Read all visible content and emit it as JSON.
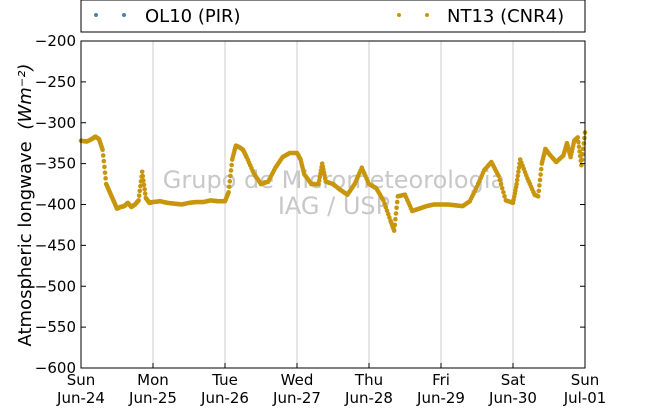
{
  "chart_data": {
    "type": "scatter",
    "ylabel": "Atmospheric longwave",
    "ylabel_units": "(Wm⁻²)",
    "ylim": [
      -600,
      -200
    ],
    "yticks": [
      -200,
      -250,
      -300,
      -350,
      -400,
      -450,
      -500,
      -550,
      -600
    ],
    "xlim": [
      0,
      7
    ],
    "x_unit": "days from Sun Jun-24 00:00",
    "xticks": [
      {
        "x": 0,
        "day": "Sun",
        "date": "Jun-24"
      },
      {
        "x": 1,
        "day": "Mon",
        "date": "Jun-25"
      },
      {
        "x": 2,
        "day": "Tue",
        "date": "Jun-26"
      },
      {
        "x": 3,
        "day": "Wed",
        "date": "Jun-27"
      },
      {
        "x": 4,
        "day": "Thu",
        "date": "Jun-28"
      },
      {
        "x": 5,
        "day": "Fri",
        "date": "Jun-29"
      },
      {
        "x": 6,
        "day": "Sat",
        "date": "Jun-30"
      },
      {
        "x": 7,
        "day": "Sun",
        "date": "Jul-01"
      }
    ],
    "grid": "vertical",
    "legend_position": "top",
    "watermark": [
      "Grupo de Micrometeorologia",
      "IAG / USP"
    ],
    "series": [
      {
        "name": "OL10 (PIR)",
        "color": "#4682b4",
        "points": []
      },
      {
        "name": "NT13 (CNR4)",
        "color": "#c8960c",
        "points": [
          [
            0.0,
            -322
          ],
          [
            0.08,
            -323
          ],
          [
            0.15,
            -320
          ],
          [
            0.2,
            -317
          ],
          [
            0.25,
            -320
          ],
          [
            0.3,
            -333
          ],
          [
            0.35,
            -375
          ],
          [
            0.4,
            -385
          ],
          [
            0.45,
            -395
          ],
          [
            0.5,
            -405
          ],
          [
            0.55,
            -403
          ],
          [
            0.6,
            -402
          ],
          [
            0.65,
            -398
          ],
          [
            0.7,
            -403
          ],
          [
            0.75,
            -400
          ],
          [
            0.8,
            -395
          ],
          [
            0.85,
            -360
          ],
          [
            0.9,
            -392
          ],
          [
            0.95,
            -398
          ],
          [
            1.0,
            -397
          ],
          [
            1.1,
            -396
          ],
          [
            1.2,
            -398
          ],
          [
            1.3,
            -399
          ],
          [
            1.4,
            -400
          ],
          [
            1.5,
            -398
          ],
          [
            1.6,
            -397
          ],
          [
            1.7,
            -397
          ],
          [
            1.8,
            -395
          ],
          [
            1.9,
            -396
          ],
          [
            2.0,
            -396
          ],
          [
            2.05,
            -385
          ],
          [
            2.1,
            -345
          ],
          [
            2.15,
            -328
          ],
          [
            2.2,
            -330
          ],
          [
            2.25,
            -333
          ],
          [
            2.3,
            -342
          ],
          [
            2.4,
            -362
          ],
          [
            2.5,
            -375
          ],
          [
            2.6,
            -372
          ],
          [
            2.7,
            -355
          ],
          [
            2.8,
            -342
          ],
          [
            2.9,
            -337
          ],
          [
            3.0,
            -337
          ],
          [
            3.05,
            -345
          ],
          [
            3.1,
            -363
          ],
          [
            3.2,
            -375
          ],
          [
            3.3,
            -375
          ],
          [
            3.35,
            -350
          ],
          [
            3.4,
            -372
          ],
          [
            3.5,
            -375
          ],
          [
            3.6,
            -382
          ],
          [
            3.7,
            -388
          ],
          [
            3.8,
            -375
          ],
          [
            3.9,
            -355
          ],
          [
            4.0,
            -375
          ],
          [
            4.1,
            -380
          ],
          [
            4.2,
            -395
          ],
          [
            4.3,
            -420
          ],
          [
            4.35,
            -432
          ],
          [
            4.4,
            -390
          ],
          [
            4.5,
            -388
          ],
          [
            4.6,
            -408
          ],
          [
            4.7,
            -405
          ],
          [
            4.8,
            -402
          ],
          [
            4.9,
            -400
          ],
          [
            5.0,
            -400
          ],
          [
            5.1,
            -400
          ],
          [
            5.2,
            -401
          ],
          [
            5.3,
            -402
          ],
          [
            5.4,
            -396
          ],
          [
            5.5,
            -378
          ],
          [
            5.6,
            -358
          ],
          [
            5.7,
            -348
          ],
          [
            5.8,
            -365
          ],
          [
            5.9,
            -395
          ],
          [
            6.0,
            -398
          ],
          [
            6.05,
            -375
          ],
          [
            6.1,
            -345
          ],
          [
            6.2,
            -368
          ],
          [
            6.3,
            -388
          ],
          [
            6.35,
            -390
          ],
          [
            6.4,
            -350
          ],
          [
            6.45,
            -332
          ],
          [
            6.5,
            -338
          ],
          [
            6.6,
            -348
          ],
          [
            6.7,
            -340
          ],
          [
            6.75,
            -325
          ],
          [
            6.8,
            -342
          ],
          [
            6.85,
            -322
          ],
          [
            6.9,
            -318
          ],
          [
            6.95,
            -352
          ],
          [
            7.0,
            -312
          ]
        ]
      }
    ]
  }
}
